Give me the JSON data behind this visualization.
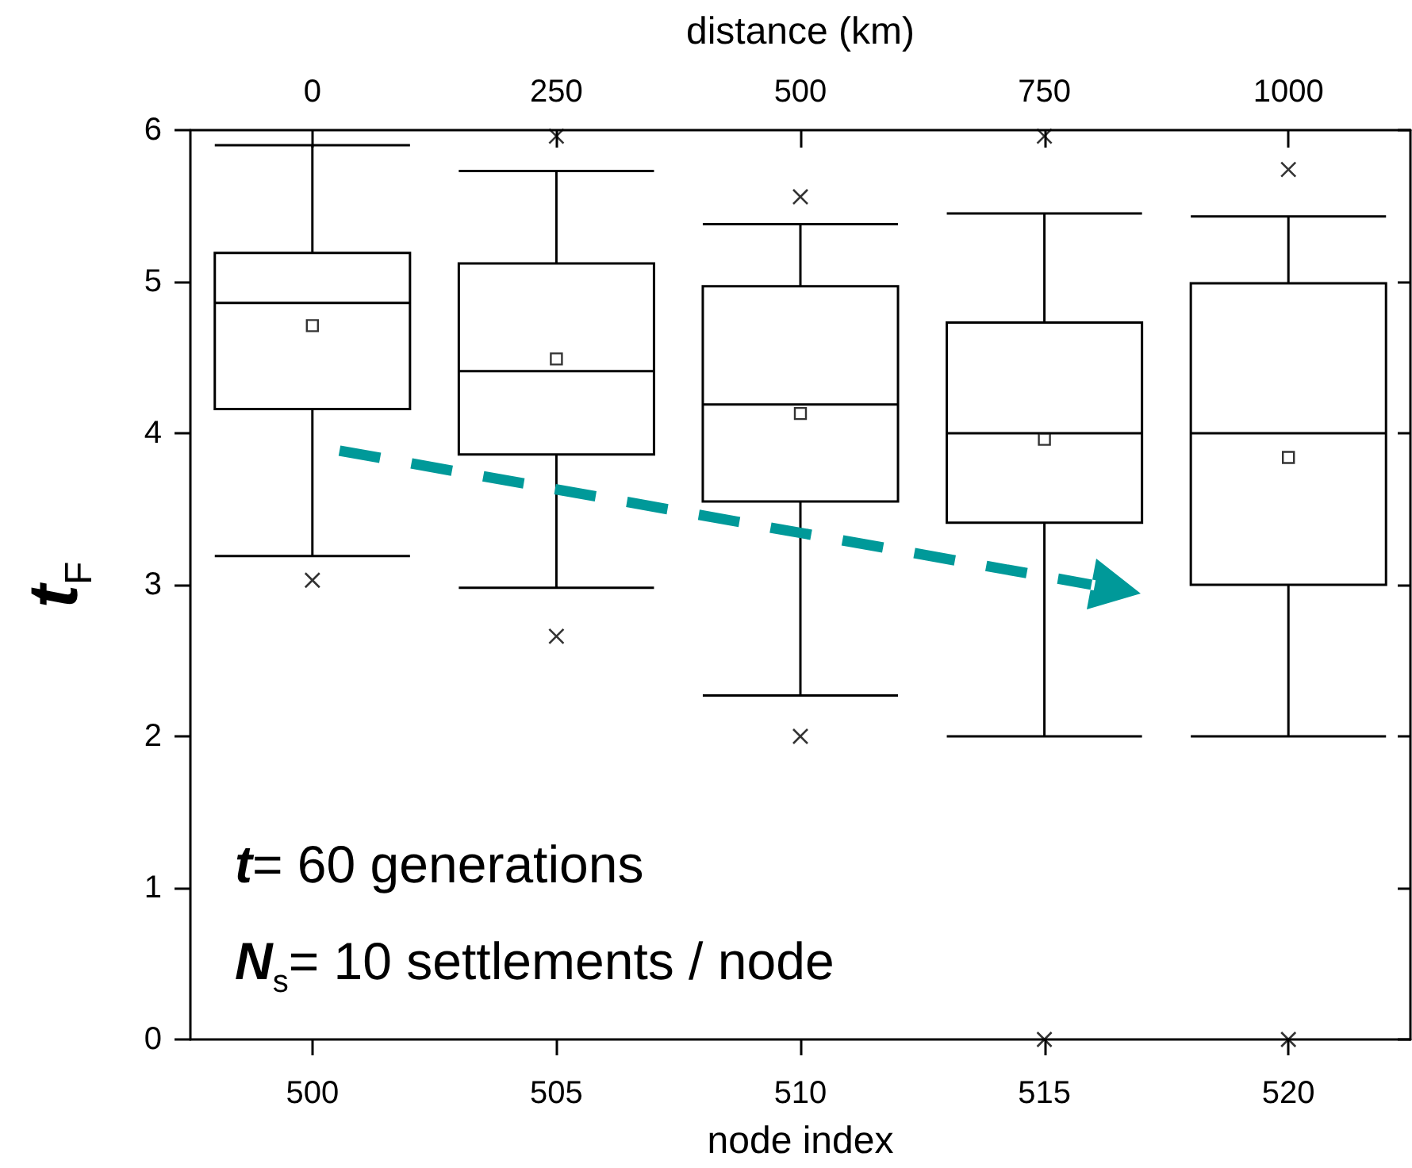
{
  "chart_data": {
    "type": "box",
    "xlabel": "node index",
    "ylabel": "t$_{F}$",
    "x2label": "distance (km)",
    "categories": [
      "500",
      "505",
      "510",
      "515",
      "520"
    ],
    "boxes": [
      {
        "low": 3.19,
        "q1": 4.16,
        "median": 4.86,
        "q3": 5.19,
        "high": 5.9,
        "mean": 4.71,
        "outliers": [
          3.03
        ]
      },
      {
        "low": 2.98,
        "q1": 3.86,
        "median": 4.41,
        "q3": 5.12,
        "high": 5.73,
        "mean": 4.49,
        "outliers": [
          2.66,
          5.96
        ]
      },
      {
        "low": 2.27,
        "q1": 3.55,
        "median": 4.19,
        "q3": 4.97,
        "high": 5.38,
        "mean": 4.13,
        "outliers": [
          2.0,
          5.56
        ]
      },
      {
        "low": 2.0,
        "q1": 3.41,
        "median": 4.0,
        "q3": 4.73,
        "high": 5.45,
        "mean": 3.96,
        "outliers": [
          0,
          5.96
        ]
      },
      {
        "low": 2.0,
        "q1": 3.0,
        "median": 4.0,
        "q3": 4.99,
        "high": 5.43,
        "mean": 3.84,
        "outliers": [
          0,
          5.74
        ]
      }
    ],
    "color": "#000000",
    "ylim": [
      0,
      6
    ],
    "yticks": [
      0,
      1,
      2,
      3,
      4,
      5,
      6
    ],
    "x2lim": [
      -125,
      1125
    ],
    "x2ticks": [
      0,
      250,
      500,
      750,
      1000
    ],
    "annotations": [
      "t= 60 generations",
      "N$_{s}$= 10 settlements / node"
    ],
    "grid": false
  }
}
